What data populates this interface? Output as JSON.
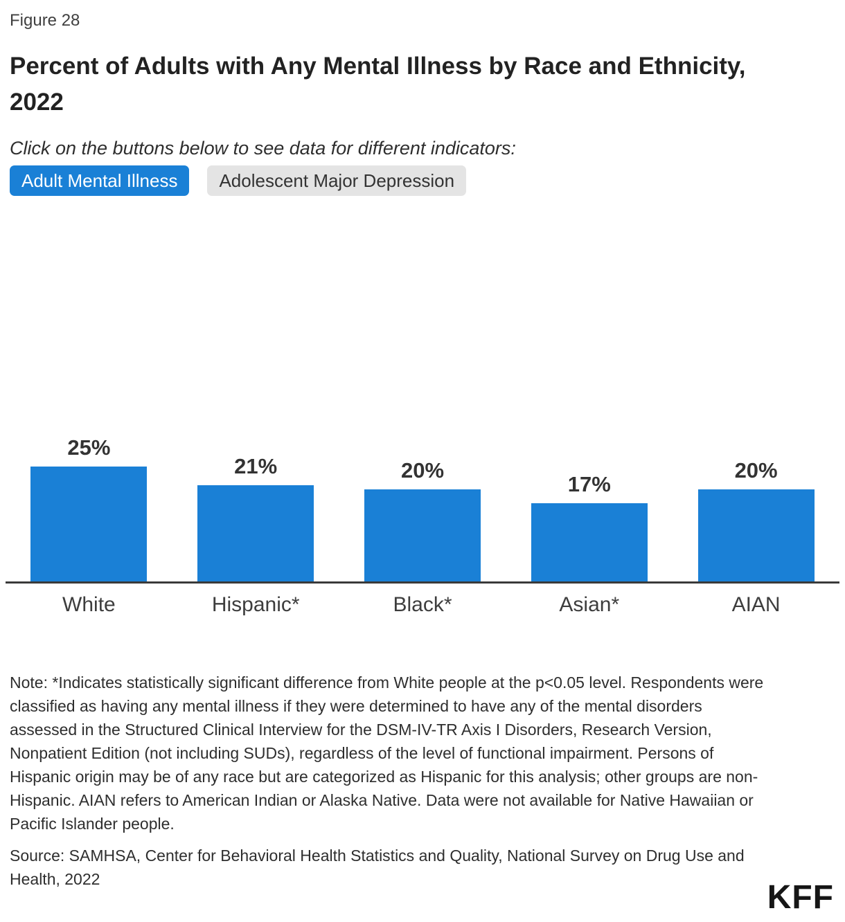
{
  "figure_label": "Figure 28",
  "title": "Percent of Adults with Any Mental Illness by Race and Ethnicity, 2022",
  "instruction": "Click on the buttons below to see data for different indicators:",
  "buttons": [
    {
      "label": "Adult Mental Illness",
      "active": true
    },
    {
      "label": "Adolescent Major Depression",
      "active": false
    }
  ],
  "colors": {
    "accent_blue": "#1a80d6",
    "inactive_button_gray": "#e4e4e4",
    "axis_line": "#3a3a3a",
    "text_dark": "#333333"
  },
  "chart_data": {
    "type": "bar",
    "categories": [
      "White",
      "Hispanic*",
      "Black*",
      "Asian*",
      "AIAN"
    ],
    "values": [
      25,
      21,
      20,
      17,
      20
    ],
    "value_labels": [
      "25%",
      "21%",
      "20%",
      "17%",
      "20%"
    ],
    "title": "Percent of Adults with Any Mental Illness by Race and Ethnicity, 2022",
    "xlabel": "",
    "ylabel": "",
    "ylim": [
      0,
      27
    ],
    "bar_color": "#1a80d6",
    "grid": false,
    "legend": false,
    "data_labels": "above bars, percent format"
  },
  "note": "Note: *Indicates statistically significant difference from White people at the p<0.05 level. Respondents were classified as having any mental illness if they were determined to have any of the mental disorders assessed in the Structured Clinical Interview for the DSM-IV-TR Axis I Disorders, Research Version, Nonpatient Edition (not including SUDs), regardless of the level of functional impairment. Persons of Hispanic origin may be of any race but are categorized as Hispanic for this analysis; other groups are non-Hispanic. AIAN refers to American Indian or Alaska Native. Data were not available for Native Hawaiian or Pacific Islander people.",
  "source": "Source: SAMHSA, Center for Behavioral Health Statistics and Quality, National Survey on Drug Use and Health, 2022",
  "logo": "KFF"
}
